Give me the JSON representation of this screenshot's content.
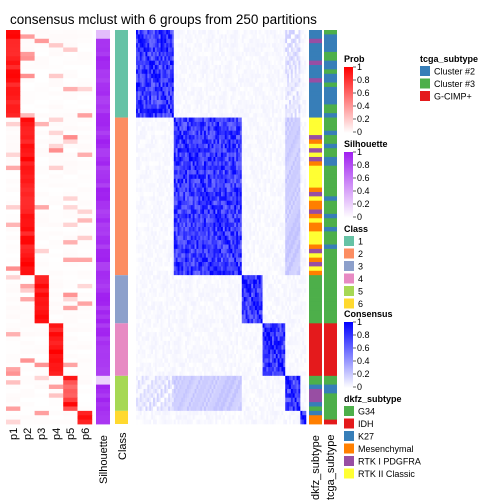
{
  "chart_data": {
    "type": "heatmap",
    "title": "consensus mclust with 6 groups from 250 partitions",
    "columns": {
      "prob": [
        "p1",
        "p2",
        "p3",
        "p4",
        "p5",
        "p6"
      ],
      "silhouette": "Silhouette",
      "class": "Class",
      "dkfz": "dkfz_subtype",
      "tcga": "tcga_subtype"
    },
    "groups": [
      {
        "class": "1",
        "n": 20,
        "color": "#66C2A5"
      },
      {
        "class": "2",
        "n": 36,
        "color": "#FC8D62"
      },
      {
        "class": "3",
        "n": 11,
        "color": "#8DA0CB"
      },
      {
        "class": "4",
        "n": 12,
        "color": "#E78AC3"
      },
      {
        "class": "5",
        "n": 8,
        "color": "#A6D854"
      },
      {
        "class": "6",
        "n": 3,
        "color": "#FFD92F"
      }
    ],
    "legends": {
      "prob": {
        "title": "Prob",
        "ticks": [
          "1",
          "0.8",
          "0.6",
          "0.4",
          "0.2",
          "0"
        ],
        "colors": [
          "#FF0000",
          "#FFFFFF"
        ]
      },
      "silhouette": {
        "title": "Silhouette",
        "ticks": [
          "1",
          "0.8",
          "0.6",
          "0.4",
          "0.2",
          "0"
        ],
        "colors": [
          "#A020F0",
          "#FFFFFF"
        ]
      },
      "class": {
        "title": "Class",
        "items": [
          {
            "label": "1",
            "color": "#66C2A5"
          },
          {
            "label": "2",
            "color": "#FC8D62"
          },
          {
            "label": "3",
            "color": "#8DA0CB"
          },
          {
            "label": "4",
            "color": "#E78AC3"
          },
          {
            "label": "5",
            "color": "#A6D854"
          },
          {
            "label": "6",
            "color": "#FFD92F"
          }
        ]
      },
      "consensus": {
        "title": "Consensus",
        "ticks": [
          "1",
          "0.8",
          "0.6",
          "0.4",
          "0.2",
          "0"
        ],
        "colors": [
          "#0000FF",
          "#FFFFFF"
        ]
      },
      "dkfz": {
        "title": "dkfz_subtype",
        "items": [
          {
            "label": "G34",
            "color": "#4DAF4A"
          },
          {
            "label": "IDH",
            "color": "#E41A1C"
          },
          {
            "label": "K27",
            "color": "#377EB8"
          },
          {
            "label": "Mesenchymal",
            "color": "#FF7F00"
          },
          {
            "label": "RTK I PDGFRA",
            "color": "#984EA3"
          },
          {
            "label": "RTK II Classic",
            "color": "#FFFF33"
          }
        ]
      },
      "tcga": {
        "title": "tcga_subtype",
        "items": [
          {
            "label": "Cluster #2",
            "color": "#377EB8"
          },
          {
            "label": "Cluster #3",
            "color": "#4DAF4A"
          },
          {
            "label": "G-CIMP+",
            "color": "#E41A1C"
          }
        ]
      }
    }
  }
}
